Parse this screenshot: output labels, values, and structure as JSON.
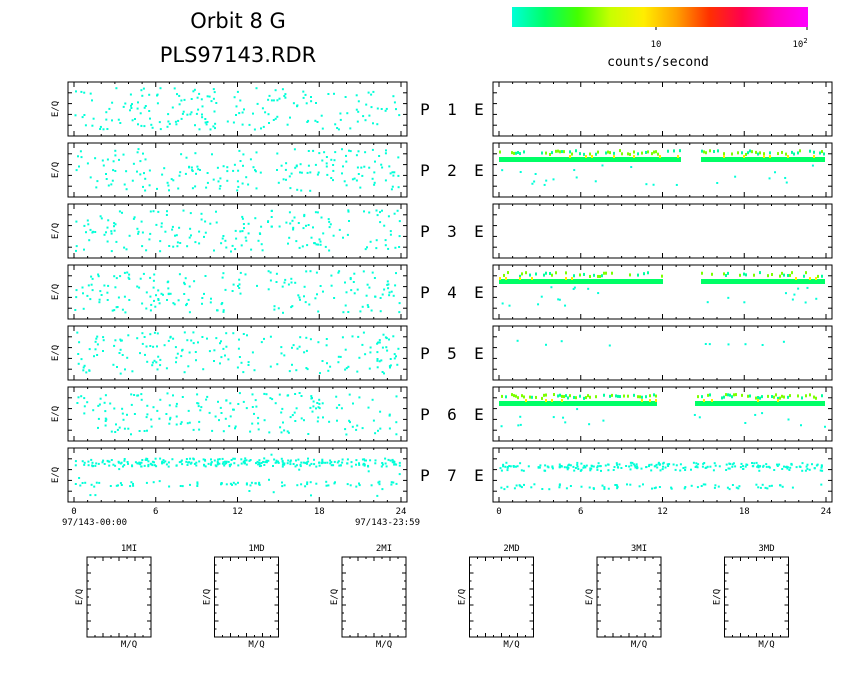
{
  "header": {
    "title_line1": "Orbit  8  G",
    "title_line2": "PLS97143.RDR"
  },
  "colorbar": {
    "label": "counts/second",
    "tick_10": "10",
    "tick_100_base": "10",
    "tick_100_exp": "2",
    "colors": [
      "#00ffd8",
      "#00ff66",
      "#44ff00",
      "#c8ff00",
      "#ffee00",
      "#ffa000",
      "#ff3000",
      "#ff0050",
      "#ff00c0",
      "#ff00ff"
    ]
  },
  "panel_labels": {
    "ylabel": "E/Q",
    "rows": [
      {
        "p": "P",
        "n": "1",
        "e": "E"
      },
      {
        "p": "P",
        "n": "2",
        "e": "E"
      },
      {
        "p": "P",
        "n": "3",
        "e": "E"
      },
      {
        "p": "P",
        "n": "4",
        "e": "E"
      },
      {
        "p": "P",
        "n": "5",
        "e": "E"
      },
      {
        "p": "P",
        "n": "6",
        "e": "E"
      },
      {
        "p": "P",
        "n": "7",
        "e": "E"
      }
    ]
  },
  "time_axis": {
    "ticks": [
      "0",
      "6",
      "12",
      "18",
      "24"
    ],
    "start_label": "97/143-00:00",
    "end_label": "97/143-23:59"
  },
  "small_panels": {
    "xlabel": "M/Q",
    "ylabel": "E/Q",
    "titles": [
      "1MI",
      "1MD",
      "2MI",
      "2MD",
      "3MI",
      "3MD"
    ]
  },
  "chart_data": {
    "type": "heatmap",
    "x_range_hours": [
      0,
      24
    ],
    "x_ticks_hours": [
      0,
      6,
      12,
      18,
      24
    ],
    "color_scale": "log",
    "color_range_counts_per_second": [
      1,
      100
    ],
    "panels": [
      {
        "name": "P1 left",
        "activity": "sparse"
      },
      {
        "name": "P1 right",
        "activity": "none"
      },
      {
        "name": "P2 left",
        "activity": "sparse"
      },
      {
        "name": "P2 right",
        "activity": "band",
        "band_gap_hours": [
          13.3,
          14.8
        ]
      },
      {
        "name": "P3 left",
        "activity": "sparse"
      },
      {
        "name": "P3 right",
        "activity": "none"
      },
      {
        "name": "P4 left",
        "activity": "sparse"
      },
      {
        "name": "P4 right",
        "activity": "band",
        "band_gap_hours": [
          12.0,
          14.8
        ]
      },
      {
        "name": "P5 left",
        "activity": "sparse"
      },
      {
        "name": "P5 right",
        "activity": "sparse"
      },
      {
        "name": "P6 left",
        "activity": "sparse"
      },
      {
        "name": "P6 right",
        "activity": "band",
        "band_gap_hours": [
          11.5,
          14.3
        ]
      },
      {
        "name": "P7 left",
        "activity": "dense"
      },
      {
        "name": "P7 right",
        "activity": "dense"
      }
    ]
  }
}
